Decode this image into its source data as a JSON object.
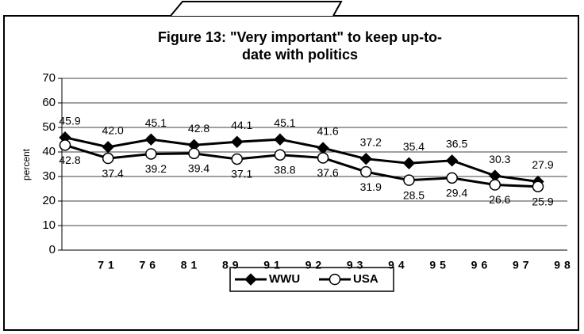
{
  "chart_data": {
    "type": "line",
    "title": [
      "Figure 13: \"Very important\" to keep up-to-",
      "date with politics"
    ],
    "y_label": "percent",
    "categories": [
      "71",
      "76",
      "81",
      "89",
      "91",
      "92",
      "93",
      "94",
      "95",
      "96",
      "97",
      "98"
    ],
    "series": [
      {
        "name": "WWU",
        "color": "#000000",
        "marker": "diamond",
        "values": [
          45.9,
          42.0,
          45.1,
          42.8,
          44.1,
          45.1,
          41.6,
          37.2,
          35.4,
          36.5,
          30.3,
          27.9
        ],
        "value_labels": [
          "45.9",
          "42.0",
          "45.1",
          "42.8",
          "44.1",
          "45.1",
          "41.6",
          "37.2",
          "35.4",
          "36.5",
          "30.3",
          "27.9"
        ]
      },
      {
        "name": "USA",
        "color": "#000000",
        "marker": "circle",
        "values": [
          42.8,
          37.4,
          39.2,
          39.4,
          37.1,
          38.8,
          37.6,
          31.9,
          28.5,
          29.4,
          26.6,
          25.9
        ],
        "value_labels": [
          "42.8",
          "37.4",
          "39.2",
          "39.4",
          "37.1",
          "38.8",
          "37.6",
          "31.9",
          "28.5",
          "29.4",
          "26.6",
          "25.9"
        ]
      }
    ],
    "ylim": [
      0,
      70
    ],
    "yticks": [
      0,
      10,
      20,
      30,
      40,
      50,
      60,
      70
    ],
    "grid": true,
    "legend": "bottom"
  }
}
